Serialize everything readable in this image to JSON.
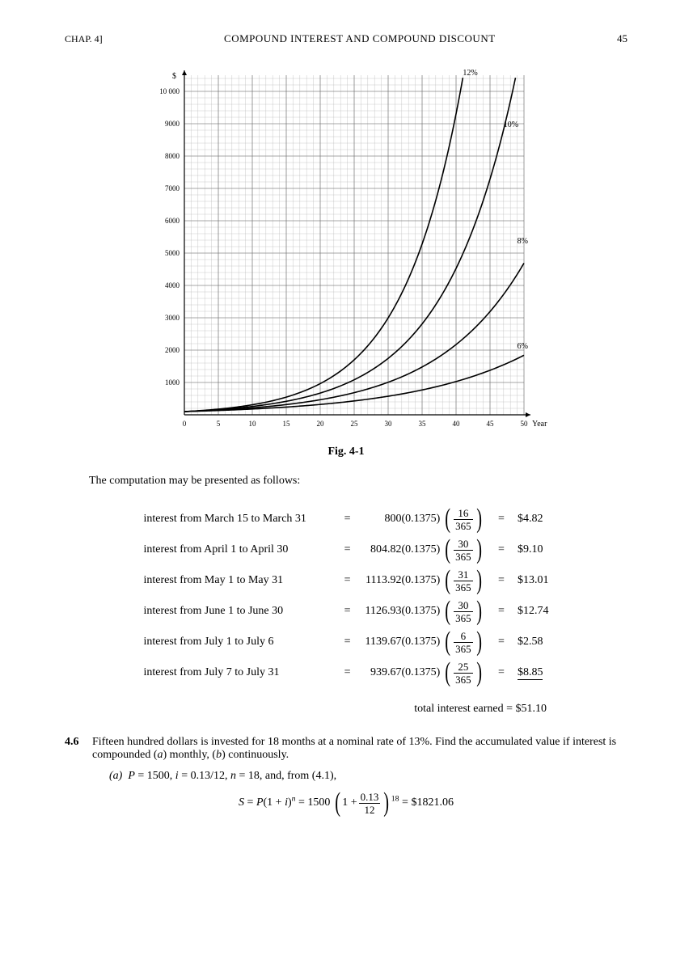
{
  "header": {
    "chapter": "CHAP. 4]",
    "title": "COMPOUND INTEREST AND COMPOUND DISCOUNT",
    "page_number": "45"
  },
  "chart": {
    "type": "line",
    "y_axis_symbol": "$",
    "x_axis_label": "Year",
    "xlim": [
      0,
      50
    ],
    "ylim": [
      0,
      10500
    ],
    "xtick_step": 5,
    "xticks": [
      "0",
      "5",
      "10",
      "15",
      "20",
      "25",
      "30",
      "35",
      "40",
      "45",
      "50"
    ],
    "yticks": [
      "1000",
      "2000",
      "3000",
      "4000",
      "5000",
      "6000",
      "7000",
      "8000",
      "9000",
      "10 000"
    ],
    "ytick_step_value": 1000,
    "minor_grid_divisions": 5,
    "background_color": "#ffffff",
    "major_grid_color": "#6b6b6b",
    "minor_grid_color": "#bdbdbd",
    "axis_color": "#000000",
    "line_color": "#000000",
    "line_width": 1.6,
    "principal": 100,
    "series": [
      {
        "rate": 0.12,
        "label": "12%",
        "label_x": 41,
        "label_y": 10500
      },
      {
        "rate": 0.1,
        "label": "10%",
        "label_x": 47,
        "label_y": 8900
      },
      {
        "rate": 0.08,
        "label": "8%",
        "label_x": 49,
        "label_y": 5300
      },
      {
        "rate": 0.06,
        "label": "6%",
        "label_x": 49,
        "label_y": 2050
      }
    ],
    "tick_fontsize": 9,
    "label_fontsize": 10
  },
  "figure_caption": "Fig. 4-1",
  "intro": "The computation may be presented as follows:",
  "calculations": [
    {
      "label": "interest from March 15 to March 31",
      "base": "800",
      "rate": "0.1375",
      "frac_num": "16",
      "frac_den": "365",
      "result": "$4.82"
    },
    {
      "label": "interest from April 1 to April 30",
      "base": "804.82",
      "rate": "0.1375",
      "frac_num": "30",
      "frac_den": "365",
      "result": "$9.10"
    },
    {
      "label": "interest from May 1 to May 31",
      "base": "1113.92",
      "rate": "0.1375",
      "frac_num": "31",
      "frac_den": "365",
      "result": "$13.01"
    },
    {
      "label": "interest from June 1 to June 30",
      "base": "1126.93",
      "rate": "0.1375",
      "frac_num": "30",
      "frac_den": "365",
      "result": "$12.74"
    },
    {
      "label": "interest from July 1 to July 6",
      "base": "1139.67",
      "rate": "0.1375",
      "frac_num": "6",
      "frac_den": "365",
      "result": "$2.58"
    },
    {
      "label": "interest from July 7 to July 31",
      "base": "939.67",
      "rate": "0.1375",
      "frac_num": "25",
      "frac_den": "365",
      "result": "$8.85",
      "underline": true
    }
  ],
  "total_line": "total interest earned = $51.10",
  "problem": {
    "number": "4.6",
    "text_part1": "Fifteen hundred dollars is invested for 18 months at a nominal rate of 13%. Find the accumulated value if interest is compounded (",
    "text_a": "a",
    "text_mid": ") monthly, (",
    "text_b": "b",
    "text_part2": ") continuously.",
    "sub_a_label": "(a)",
    "sub_a_text": "P = 1500, i = 0.13/12, n = 18, and, from (4.1),",
    "equation": {
      "lhs": "S = P(1 + i)",
      "exp1": "n",
      "mid": " = 1500",
      "base_num": "0.13",
      "base_den": "12",
      "exp2": "18",
      "rhs": " = $1821.06"
    }
  }
}
